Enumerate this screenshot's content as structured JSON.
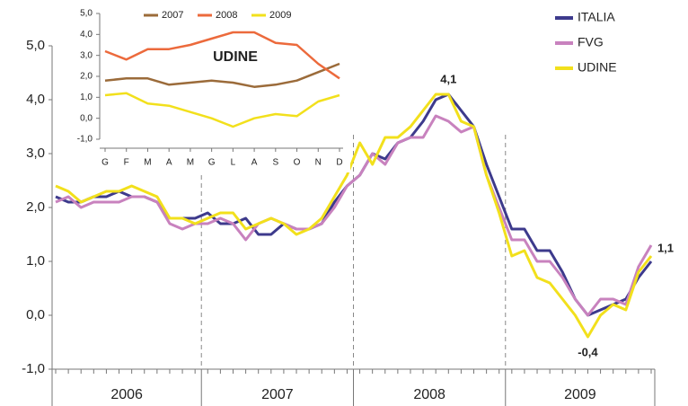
{
  "chart_data": [
    {
      "type": "line",
      "categories": [
        null,
        null,
        null,
        null,
        null,
        null,
        null,
        null,
        null,
        null,
        null,
        null,
        null,
        null,
        null,
        null,
        null,
        null,
        null,
        null,
        null,
        null,
        null,
        null,
        null,
        null,
        null,
        null,
        null,
        null,
        null,
        null,
        null,
        null,
        null,
        null,
        null,
        null,
        null,
        null,
        null,
        null,
        null,
        null,
        null,
        null,
        null,
        null
      ],
      "x_groups": [
        "2006",
        "2007",
        "2008",
        "2009"
      ],
      "series": [
        {
          "name": "ITALIA",
          "color": "#3d3a8c",
          "values": [
            2.2,
            2.1,
            2.1,
            2.2,
            2.2,
            2.3,
            2.2,
            2.2,
            2.1,
            1.8,
            1.8,
            1.8,
            1.9,
            1.7,
            1.7,
            1.8,
            1.5,
            1.5,
            1.7,
            1.6,
            1.6,
            1.7,
            2.1,
            2.4,
            2.6,
            3.0,
            2.9,
            3.2,
            3.3,
            3.6,
            4.0,
            4.1,
            3.8,
            3.5,
            2.8,
            2.2,
            1.6,
            1.6,
            1.2,
            1.2,
            0.8,
            0.3,
            0.0,
            0.1,
            0.2,
            0.3,
            0.7,
            1.0
          ]
        },
        {
          "name": "FVG",
          "color": "#c882be",
          "values": [
            2.1,
            2.2,
            2.0,
            2.1,
            2.1,
            2.1,
            2.2,
            2.2,
            2.1,
            1.7,
            1.6,
            1.7,
            1.7,
            1.8,
            1.7,
            1.4,
            1.7,
            1.8,
            1.7,
            1.6,
            1.6,
            1.7,
            2.0,
            2.4,
            2.6,
            3.0,
            2.8,
            3.2,
            3.3,
            3.3,
            3.7,
            3.6,
            3.4,
            3.5,
            2.6,
            2.0,
            1.4,
            1.4,
            1.0,
            1.0,
            0.7,
            0.3,
            0.0,
            0.3,
            0.3,
            0.2,
            0.9,
            1.3
          ]
        },
        {
          "name": "UDINE",
          "color": "#f2e01c",
          "values": [
            2.4,
            2.3,
            2.1,
            2.2,
            2.3,
            2.3,
            2.4,
            2.3,
            2.2,
            1.8,
            1.8,
            1.7,
            1.8,
            1.9,
            1.9,
            1.6,
            1.7,
            1.8,
            1.7,
            1.5,
            1.6,
            1.8,
            2.2,
            2.6,
            3.2,
            2.8,
            3.3,
            3.3,
            3.5,
            3.8,
            4.1,
            4.1,
            3.6,
            3.5,
            2.6,
            1.9,
            1.1,
            1.2,
            0.7,
            0.6,
            0.3,
            0.0,
            -0.4,
            0.0,
            0.2,
            0.1,
            0.8,
            1.1
          ],
          "value_labels": [
            null,
            null,
            null,
            null,
            null,
            null,
            null,
            null,
            null,
            null,
            null,
            null,
            null,
            null,
            null,
            null,
            null,
            null,
            null,
            null,
            null,
            null,
            null,
            null,
            null,
            null,
            null,
            null,
            null,
            null,
            null,
            "4,1",
            null,
            null,
            null,
            null,
            null,
            null,
            null,
            null,
            null,
            null,
            "-0,4",
            null,
            null,
            null,
            null,
            "1,1"
          ]
        }
      ],
      "ylim": [
        -1,
        5
      ],
      "yticks": [
        {
          "value": -1,
          "label": "-1,0"
        },
        {
          "value": 0,
          "label": "0,0"
        },
        {
          "value": 1,
          "label": "1,0"
        },
        {
          "value": 2,
          "label": "2,0"
        },
        {
          "value": 3,
          "label": "3,0"
        },
        {
          "value": 4,
          "label": "4,0"
        },
        {
          "value": 5,
          "label": "5,0"
        }
      ],
      "legend": "top-right"
    },
    {
      "type": "line",
      "title": "UDINE",
      "categories": [
        "G",
        "F",
        "M",
        "A",
        "M",
        "G",
        "L",
        "A",
        "S",
        "O",
        "N",
        "D"
      ],
      "series": [
        {
          "name": "2007",
          "color": "#9b6b3a",
          "values": [
            1.8,
            1.9,
            1.9,
            1.6,
            1.7,
            1.8,
            1.7,
            1.5,
            1.6,
            1.8,
            2.2,
            2.6
          ]
        },
        {
          "name": "2008",
          "color": "#ec6a3c",
          "values": [
            3.2,
            2.8,
            3.3,
            3.3,
            3.5,
            3.8,
            4.1,
            4.1,
            3.6,
            3.5,
            2.6,
            1.9
          ]
        },
        {
          "name": "2009",
          "color": "#f2e01c",
          "values": [
            1.1,
            1.2,
            0.7,
            0.6,
            0.3,
            0.0,
            -0.4,
            0.0,
            0.2,
            0.1,
            0.8,
            1.1
          ]
        }
      ],
      "ylim": [
        -1,
        5
      ],
      "yticks": [
        {
          "value": -1,
          "label": "-1,0"
        },
        {
          "value": 0,
          "label": "0,0"
        },
        {
          "value": 1,
          "label": "1,0"
        },
        {
          "value": 2,
          "label": "2,0"
        },
        {
          "value": 3,
          "label": "3,0"
        },
        {
          "value": 4,
          "label": "4,0"
        },
        {
          "value": 5,
          "label": "5,0"
        }
      ],
      "legend": "top"
    }
  ]
}
